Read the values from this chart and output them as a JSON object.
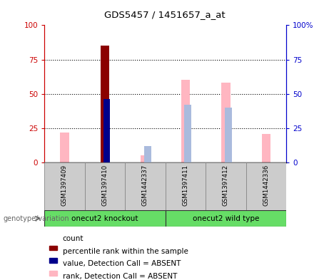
{
  "title": "GDS5457 / 1451657_a_at",
  "samples": [
    "GSM1397409",
    "GSM1397410",
    "GSM1442337",
    "GSM1397411",
    "GSM1397412",
    "GSM1442336"
  ],
  "count_values": [
    0,
    85,
    0,
    0,
    0,
    0
  ],
  "count_color": "#8B0000",
  "percentile_rank_values": [
    0,
    46,
    0,
    0,
    0,
    0
  ],
  "percentile_rank_color": "#00008B",
  "value_absent": [
    22,
    0,
    5,
    60,
    58,
    21
  ],
  "value_absent_color": "#FFB6C1",
  "rank_absent": [
    0,
    0,
    12,
    42,
    40,
    0
  ],
  "rank_absent_color": "#AABBDD",
  "ylim": [
    0,
    100
  ],
  "yticks": [
    0,
    25,
    50,
    75,
    100
  ],
  "axis_left_color": "#cc0000",
  "axis_right_color": "#0000cc",
  "group1_label": "onecut2 knockout",
  "group2_label": "onecut2 wild type",
  "group_color": "#66DD66",
  "sample_bg_color": "#cccccc",
  "genotype_label": "genotype/variation",
  "legend_items": [
    {
      "label": "count",
      "color": "#8B0000"
    },
    {
      "label": "percentile rank within the sample",
      "color": "#00008B"
    },
    {
      "label": "value, Detection Call = ABSENT",
      "color": "#FFB6C1"
    },
    {
      "label": "rank, Detection Call = ABSENT",
      "color": "#AABBDD"
    }
  ]
}
